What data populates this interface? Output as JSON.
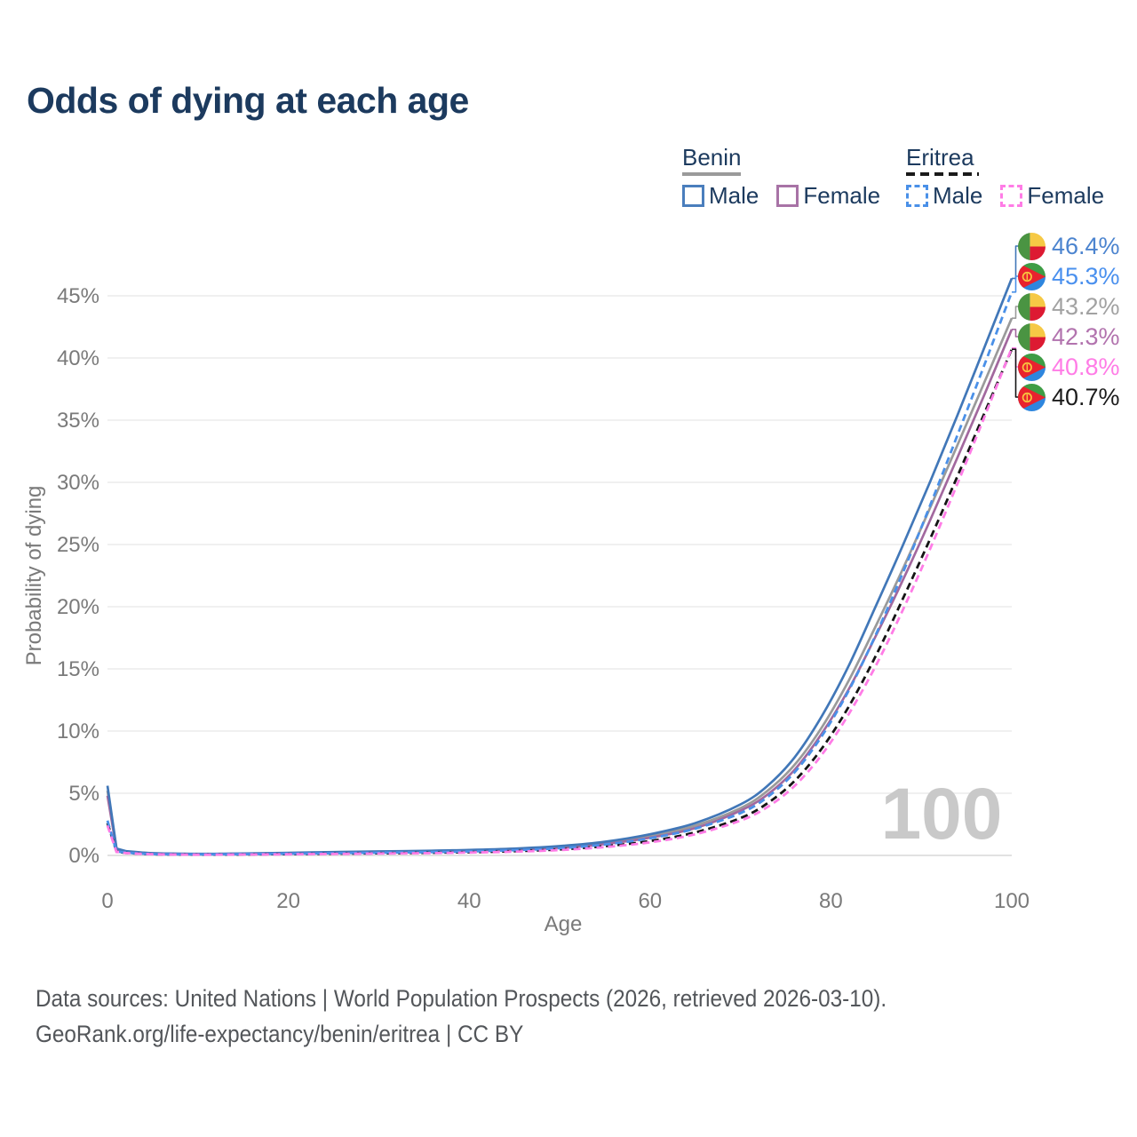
{
  "title": "Odds of dying at each age",
  "legend": {
    "benin": {
      "title": "Benin",
      "male_label": "Male",
      "female_label": "Female"
    },
    "eritrea": {
      "title": "Eritrea",
      "male_label": "Male",
      "female_label": "Female"
    }
  },
  "watermark": "100",
  "footer": {
    "line1": "Data sources: United Nations | World Population Prospects (2026, retrieved 2026-03-10).",
    "line2": "GeoRank.org/life-expectancy/benin/eritrea | CC BY"
  },
  "colors": {
    "benin_male": "#4177b8",
    "benin_female": "#a2689e",
    "benin_total": "#9a9a9a",
    "eritrea_male": "#4a90e8",
    "eritrea_female": "#ff7ce6",
    "eritrea_total": "#141414",
    "title_navy": "#1c3a5e",
    "axis_text": "#7a7a7a",
    "gridline": "#ebebeb",
    "baseline": "#d8d8d8",
    "watermark_gray": "#c9c9c9"
  },
  "chart_data": {
    "type": "line",
    "title": "Odds of dying at each age",
    "xlabel": "Age",
    "ylabel": "Probability of dying",
    "xlim": [
      0,
      100
    ],
    "ylim_pct": [
      0,
      47
    ],
    "grid": true,
    "legend_position": "top-right",
    "xticks": [
      0,
      20,
      40,
      60,
      80,
      100
    ],
    "yticks_pct": [
      0,
      5,
      10,
      15,
      20,
      25,
      30,
      35,
      40,
      45
    ],
    "ytick_labels": [
      "0%",
      "5%",
      "10%",
      "15%",
      "20%",
      "25%",
      "30%",
      "35%",
      "40%",
      "45%"
    ],
    "x_ages": [
      0,
      1,
      2,
      5,
      10,
      15,
      20,
      25,
      30,
      35,
      40,
      45,
      50,
      55,
      60,
      65,
      70,
      73,
      76,
      79,
      82,
      85,
      88,
      91,
      94,
      97,
      100
    ],
    "series": [
      {
        "id": "benin_male",
        "name": "Benin Male",
        "country": "Benin",
        "sex": "Male",
        "style": "solid",
        "color": "#4177b8",
        "end_label": "46.4%",
        "end_label_color": "#4c84cf",
        "flag": "benin",
        "values_pct": [
          5.6,
          0.55,
          0.35,
          0.18,
          0.13,
          0.15,
          0.21,
          0.27,
          0.32,
          0.37,
          0.44,
          0.55,
          0.75,
          1.1,
          1.7,
          2.6,
          4.1,
          5.6,
          7.9,
          11.2,
          15.3,
          20.1,
          25.0,
          30.1,
          35.4,
          40.9,
          46.4
        ]
      },
      {
        "id": "benin_female",
        "name": "Benin Female",
        "country": "Benin",
        "sex": "Female",
        "style": "solid",
        "color": "#a2689e",
        "end_label": "42.3%",
        "end_label_color": "#b273ae",
        "flag": "benin",
        "values_pct": [
          4.8,
          0.48,
          0.3,
          0.16,
          0.11,
          0.12,
          0.16,
          0.2,
          0.24,
          0.29,
          0.36,
          0.45,
          0.62,
          0.92,
          1.42,
          2.2,
          3.6,
          4.9,
          6.9,
          9.8,
          13.4,
          17.7,
          22.2,
          27.0,
          32.0,
          37.1,
          42.3
        ]
      },
      {
        "id": "benin_total",
        "name": "Benin",
        "country": "Benin",
        "sex": "Both",
        "style": "solid",
        "color": "#9a9a9a",
        "end_label": "43.2%",
        "end_label_color": "#a2a2a2",
        "flag": "benin",
        "values_pct": [
          5.2,
          0.52,
          0.33,
          0.17,
          0.12,
          0.14,
          0.19,
          0.24,
          0.28,
          0.33,
          0.4,
          0.5,
          0.68,
          1.0,
          1.55,
          2.4,
          3.8,
          5.2,
          7.3,
          10.3,
          14.1,
          18.5,
          23.1,
          28.0,
          33.0,
          38.1,
          43.2
        ]
      },
      {
        "id": "eritrea_male",
        "name": "Eritrea Male",
        "country": "Eritrea",
        "sex": "Male",
        "style": "dashed",
        "color": "#4a90e8",
        "end_label": "45.3%",
        "end_label_color": "#4a90ee",
        "flag": "eritrea",
        "values_pct": [
          2.8,
          0.32,
          0.22,
          0.11,
          0.08,
          0.1,
          0.14,
          0.18,
          0.22,
          0.26,
          0.32,
          0.42,
          0.58,
          0.88,
          1.38,
          2.15,
          3.4,
          4.7,
          6.7,
          9.6,
          13.3,
          17.8,
          22.8,
          28.2,
          33.8,
          39.5,
          45.3
        ]
      },
      {
        "id": "eritrea_female",
        "name": "Eritrea Female",
        "country": "Eritrea",
        "sex": "Female",
        "style": "dashed",
        "color": "#ff7ce6",
        "end_label": "40.8%",
        "end_label_color": "#ff7ce6",
        "flag": "eritrea",
        "values_pct": [
          2.4,
          0.28,
          0.19,
          0.09,
          0.06,
          0.07,
          0.09,
          0.12,
          0.15,
          0.18,
          0.23,
          0.3,
          0.43,
          0.67,
          1.05,
          1.7,
          2.8,
          3.9,
          5.6,
          8.1,
          11.4,
          15.3,
          19.8,
          24.7,
          29.9,
          35.3,
          40.8
        ]
      },
      {
        "id": "eritrea_total",
        "name": "Eritrea",
        "country": "Eritrea",
        "sex": "Both",
        "style": "dashed",
        "color": "#141414",
        "end_label": "40.7%",
        "end_label_color": "#1c1c1c",
        "flag": "eritrea",
        "values_pct": [
          2.6,
          0.3,
          0.2,
          0.1,
          0.07,
          0.08,
          0.11,
          0.14,
          0.17,
          0.21,
          0.26,
          0.34,
          0.48,
          0.74,
          1.16,
          1.85,
          3.0,
          4.2,
          6.0,
          8.6,
          12.0,
          16.1,
          20.7,
          25.5,
          30.5,
          35.6,
          40.7
        ]
      }
    ],
    "hover_age": "100"
  },
  "end_label_order": [
    "benin_male",
    "eritrea_male",
    "benin_total",
    "benin_female",
    "eritrea_female",
    "eritrea_total"
  ]
}
